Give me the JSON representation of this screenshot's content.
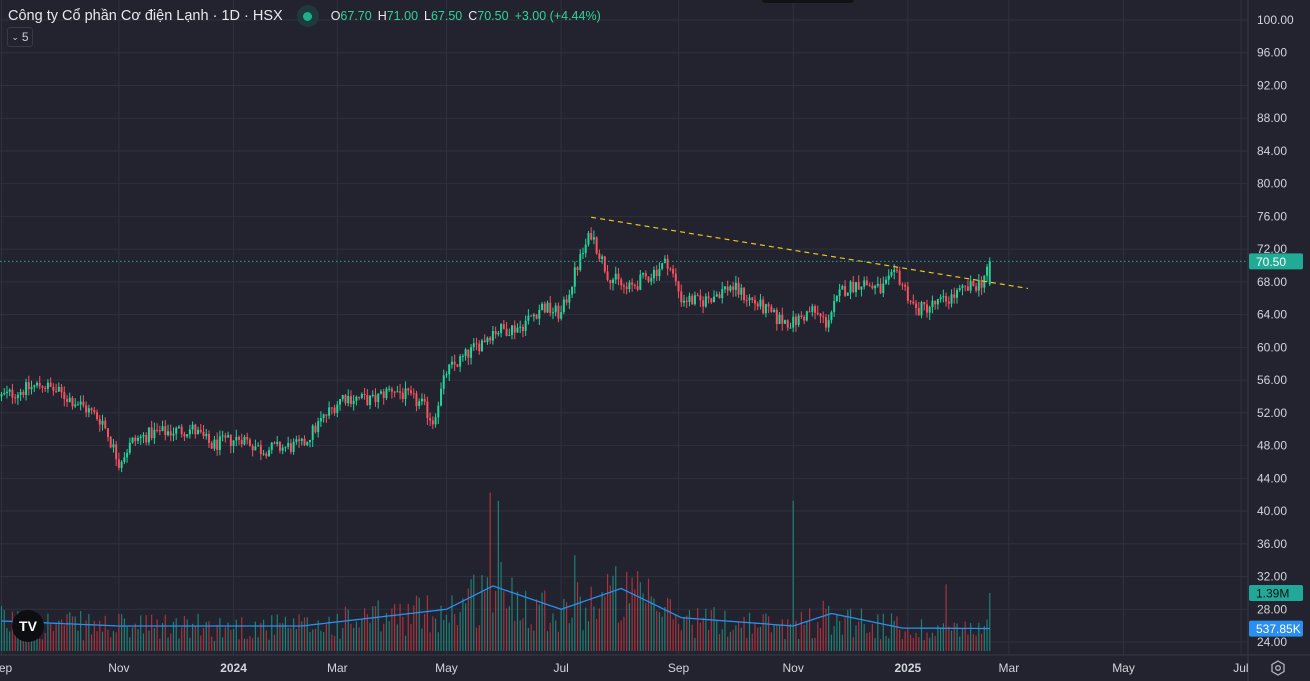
{
  "header": {
    "title": "Công ty Cổ phần Cơ điện Lạnh · 1D · HSX",
    "open_label": "O",
    "open": "67.70",
    "high_label": "H",
    "high": "71.00",
    "low_label": "L",
    "low": "67.50",
    "close_label": "C",
    "close": "70.50",
    "change": "+3.00 (+4.44%)",
    "indicator_toggle": "5"
  },
  "logo": "TV",
  "colors": {
    "up": "#22d49a",
    "down": "#f7525f",
    "volume_ma": "#2a8ff0",
    "trendline": "#e8c520",
    "last_price": "#22ab94",
    "volume_label": "#22a898",
    "ma_label": "#2a8ff0"
  },
  "chart_data": {
    "type": "candlestick",
    "price_axis": {
      "min": 24,
      "max": 100,
      "step": 4,
      "ticks": [
        "100.00",
        "96.00",
        "92.00",
        "88.00",
        "84.00",
        "80.00",
        "76.00",
        "72.00",
        "68.00",
        "64.00",
        "60.00",
        "56.00",
        "52.00",
        "48.00",
        "44.00",
        "40.00",
        "36.00",
        "32.00",
        "28.00",
        "24.00"
      ]
    },
    "time_axis": [
      {
        "label": "Sep",
        "day": 0,
        "bold": false
      },
      {
        "label": "Nov",
        "day": 43,
        "bold": false
      },
      {
        "label": "2024",
        "day": 85,
        "bold": true
      },
      {
        "label": "Mar",
        "day": 123,
        "bold": false
      },
      {
        "label": "May",
        "day": 163,
        "bold": false
      },
      {
        "label": "Jul",
        "day": 205,
        "bold": false
      },
      {
        "label": "Sep",
        "day": 248,
        "bold": false
      },
      {
        "label": "Nov",
        "day": 290,
        "bold": false
      },
      {
        "label": "2025",
        "day": 332,
        "bold": true
      },
      {
        "label": "Mar",
        "day": 369,
        "bold": false
      },
      {
        "label": "May",
        "day": 411,
        "bold": false
      },
      {
        "label": "Jul",
        "day": 454,
        "bold": false
      }
    ],
    "total_days": 362,
    "price_path": [
      [
        0,
        54
      ],
      [
        15,
        55.5
      ],
      [
        29,
        53
      ],
      [
        37,
        51
      ],
      [
        43,
        46
      ],
      [
        48,
        48.5
      ],
      [
        55,
        49.5
      ],
      [
        70,
        50
      ],
      [
        77,
        48
      ],
      [
        88,
        49
      ],
      [
        95,
        47.5
      ],
      [
        110,
        48
      ],
      [
        117,
        51
      ],
      [
        125,
        54
      ],
      [
        136,
        53.5
      ],
      [
        143,
        55
      ],
      [
        154,
        53
      ],
      [
        158,
        51
      ],
      [
        163,
        57
      ],
      [
        172,
        59.5
      ],
      [
        180,
        62
      ],
      [
        190,
        62.5
      ],
      [
        198,
        65
      ],
      [
        205,
        64
      ],
      [
        211,
        70
      ],
      [
        216,
        74
      ],
      [
        222,
        69
      ],
      [
        229,
        67
      ],
      [
        236,
        68.5
      ],
      [
        244,
        70.5
      ],
      [
        249,
        66
      ],
      [
        256,
        65.5
      ],
      [
        267,
        67.5
      ],
      [
        278,
        65
      ],
      [
        284,
        63.5
      ],
      [
        290,
        63
      ],
      [
        297,
        64.5
      ],
      [
        302,
        63
      ],
      [
        308,
        67
      ],
      [
        315,
        68
      ],
      [
        322,
        67
      ],
      [
        328,
        69
      ],
      [
        335,
        64.5
      ],
      [
        344,
        65.5
      ],
      [
        353,
        67
      ],
      [
        359,
        68
      ],
      [
        362,
        70.5
      ]
    ],
    "last_candle": {
      "open": 67.7,
      "high": 71.0,
      "low": 67.5,
      "close": 70.5
    },
    "volume_ma_path_millions": [
      [
        0,
        0.72
      ],
      [
        43,
        0.6
      ],
      [
        110,
        0.6
      ],
      [
        163,
        1.0
      ],
      [
        180,
        1.56
      ],
      [
        205,
        1.0
      ],
      [
        227,
        1.5
      ],
      [
        249,
        0.8
      ],
      [
        290,
        0.6
      ],
      [
        304,
        0.9
      ],
      [
        330,
        0.55
      ],
      [
        360,
        0.54
      ]
    ],
    "volume_spikes_millions": [
      [
        179,
        3.8
      ],
      [
        182,
        3.6
      ],
      [
        210,
        2.3
      ],
      [
        229,
        1.9
      ],
      [
        290,
        3.6
      ],
      [
        346,
        1.6
      ],
      [
        362,
        1.39
      ]
    ],
    "trendline": {
      "start": {
        "day": 216,
        "price": 75.9
      },
      "end": {
        "day": 376,
        "price": 67.2
      },
      "style": "dashed"
    },
    "last_price_label": "70.50",
    "volume_label": "1.39M",
    "volume_ma_label": "537.85K"
  }
}
